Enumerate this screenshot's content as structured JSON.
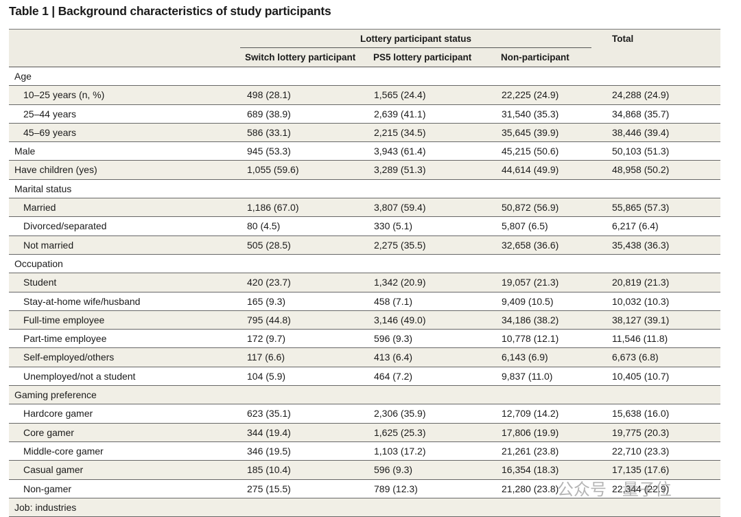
{
  "title": "Table 1 | Background characteristics of study participants",
  "table": {
    "group_header": "Lottery participant status",
    "total_header": "Total",
    "columns": [
      "Switch lottery participant",
      "PS5 lottery participant",
      "Non-participant"
    ],
    "items": [
      {
        "label": "Age",
        "rows": [
          {
            "label": "10–25 years (n, %)",
            "cells": [
              "498 (28.1)",
              "1,565 (24.4)",
              "22,225 (24.9)",
              "24,288 (24.9)"
            ]
          },
          {
            "label": "25–44 years",
            "cells": [
              "689 (38.9)",
              "2,639 (41.1)",
              "31,540 (35.3)",
              "34,868 (35.7)"
            ]
          },
          {
            "label": "45–69 years",
            "cells": [
              "586 (33.1)",
              "2,215 (34.5)",
              "35,645 (39.9)",
              "38,446 (39.4)"
            ]
          }
        ]
      },
      {
        "label": "Male",
        "cells": [
          "945 (53.3)",
          "3,943 (61.4)",
          "45,215 (50.6)",
          "50,103 (51.3)"
        ]
      },
      {
        "label": "Have children (yes)",
        "cells": [
          "1,055 (59.6)",
          "3,289 (51.3)",
          "44,614 (49.9)",
          "48,958 (50.2)"
        ]
      },
      {
        "label": "Marital status",
        "rows": [
          {
            "label": "Married",
            "cells": [
              "1,186 (67.0)",
              "3,807 (59.4)",
              "50,872 (56.9)",
              "55,865 (57.3)"
            ]
          },
          {
            "label": "Divorced/separated",
            "cells": [
              "80 (4.5)",
              "330 (5.1)",
              "5,807 (6.5)",
              "6,217 (6.4)"
            ]
          },
          {
            "label": "Not married",
            "cells": [
              "505 (28.5)",
              "2,275 (35.5)",
              "32,658 (36.6)",
              "35,438 (36.3)"
            ]
          }
        ]
      },
      {
        "label": "Occupation",
        "rows": [
          {
            "label": "Student",
            "cells": [
              "420 (23.7)",
              "1,342 (20.9)",
              "19,057 (21.3)",
              "20,819 (21.3)"
            ]
          },
          {
            "label": "Stay-at-home wife/husband",
            "cells": [
              "165 (9.3)",
              "458 (7.1)",
              "9,409 (10.5)",
              "10,032 (10.3)"
            ]
          },
          {
            "label": "Full-time employee",
            "cells": [
              "795 (44.8)",
              "3,146 (49.0)",
              "34,186 (38.2)",
              "38,127 (39.1)"
            ]
          },
          {
            "label": "Part-time employee",
            "cells": [
              "172 (9.7)",
              "596 (9.3)",
              "10,778 (12.1)",
              "11,546 (11.8)"
            ]
          },
          {
            "label": "Self-employed/others",
            "cells": [
              "117 (6.6)",
              "413 (6.4)",
              "6,143 (6.9)",
              "6,673 (6.8)"
            ]
          },
          {
            "label": "Unemployed/not a student",
            "cells": [
              "104 (5.9)",
              "464 (7.2)",
              "9,837 (11.0)",
              "10,405 (10.7)"
            ]
          }
        ]
      },
      {
        "label": "Gaming preference",
        "rows": [
          {
            "label": "Hardcore gamer",
            "cells": [
              "623 (35.1)",
              "2,306 (35.9)",
              "12,709 (14.2)",
              "15,638 (16.0)"
            ]
          },
          {
            "label": "Core gamer",
            "cells": [
              "344 (19.4)",
              "1,625 (25.3)",
              "17,806 (19.9)",
              "19,775 (20.3)"
            ]
          },
          {
            "label": "Middle-core gamer",
            "cells": [
              "346 (19.5)",
              "1,103 (17.2)",
              "21,261 (23.8)",
              "22,710 (23.3)"
            ]
          },
          {
            "label": "Casual gamer",
            "cells": [
              "185 (10.4)",
              "596 (9.3)",
              "16,354 (18.3)",
              "17,135 (17.6)"
            ]
          },
          {
            "label": "Non-gamer",
            "cells": [
              "275 (15.5)",
              "789 (12.3)",
              "21,280 (23.8)",
              "22,344 (22.9)"
            ]
          }
        ]
      },
      {
        "label": "Job: industries",
        "rows": []
      }
    ]
  },
  "watermark": "公众号 · 量子位"
}
